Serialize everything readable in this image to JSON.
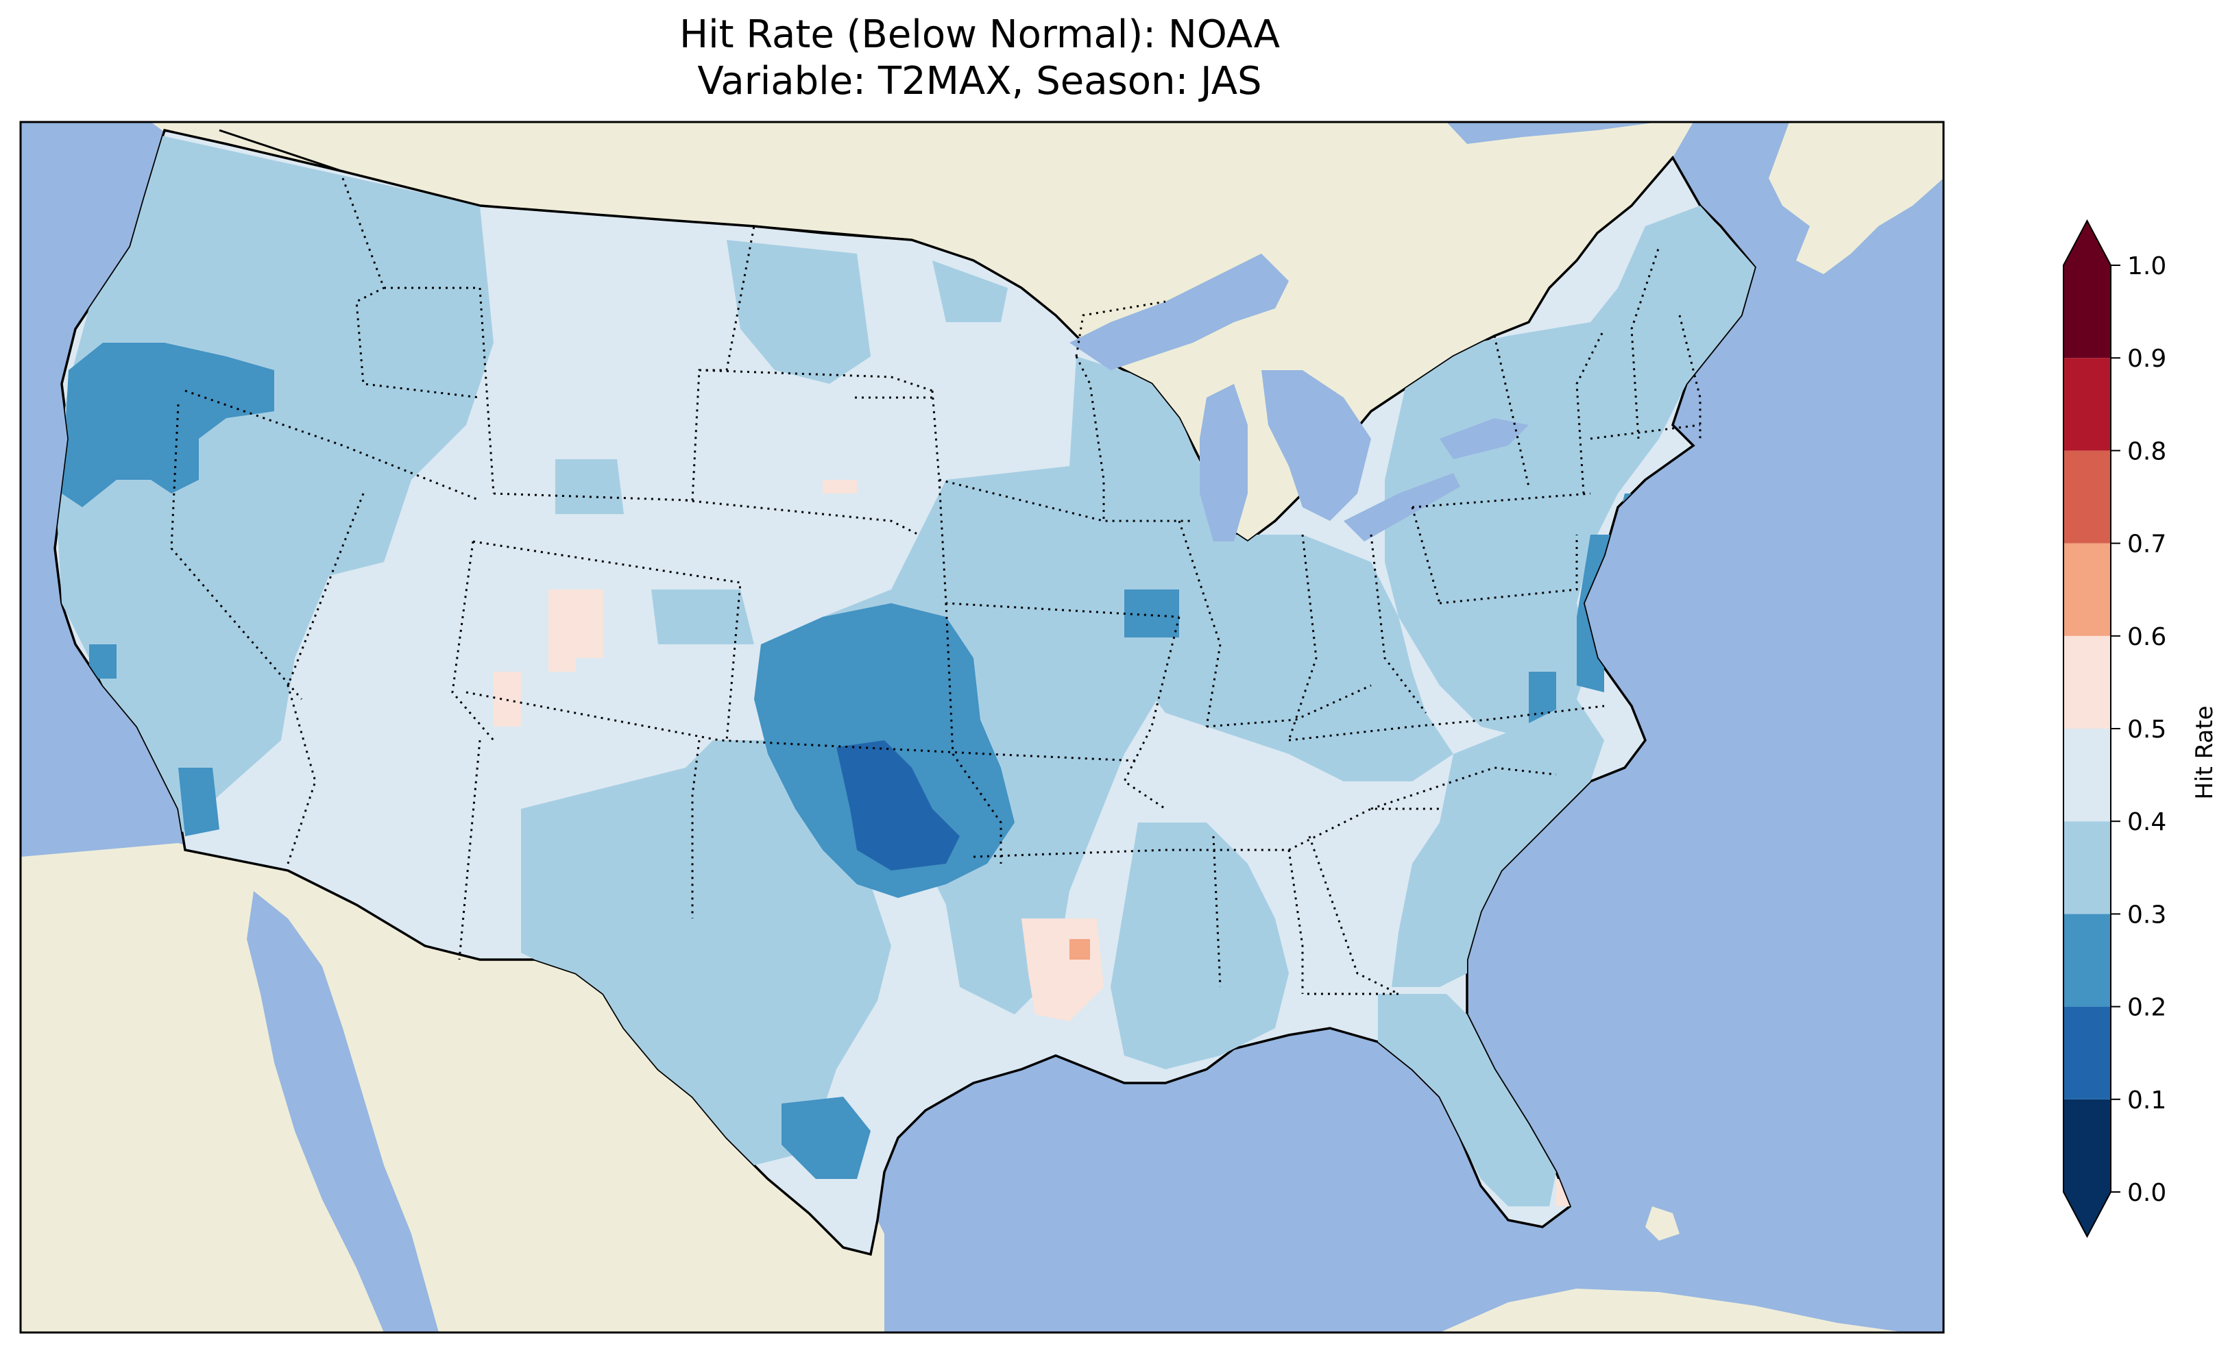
{
  "title_line_1": "Hit Rate (Below Normal): NOAA",
  "title_line_2": "Variable: T2MAX, Season: JAS",
  "colorbar": {
    "label": "Hit Rate",
    "ticks": [
      "0.0",
      "0.1",
      "0.2",
      "0.3",
      "0.4",
      "0.5",
      "0.6",
      "0.7",
      "0.8",
      "0.9",
      "1.0"
    ],
    "bins": [
      {
        "from": 0.0,
        "to": 0.1,
        "color": "#053061"
      },
      {
        "from": 0.1,
        "to": 0.2,
        "color": "#2166ac"
      },
      {
        "from": 0.2,
        "to": 0.3,
        "color": "#4393c3"
      },
      {
        "from": 0.3,
        "to": 0.4,
        "color": "#a6cee3"
      },
      {
        "from": 0.4,
        "to": 0.5,
        "color": "#dce9f2"
      },
      {
        "from": 0.5,
        "to": 0.6,
        "color": "#f9e3da"
      },
      {
        "from": 0.6,
        "to": 0.7,
        "color": "#f4a582"
      },
      {
        "from": 0.7,
        "to": 0.8,
        "color": "#d6604d"
      },
      {
        "from": 0.8,
        "to": 0.9,
        "color": "#b2182b"
      },
      {
        "from": 0.9,
        "to": 1.0,
        "color": "#67001f"
      }
    ],
    "extend": "both"
  },
  "colors": {
    "ocean": "#97b6e1",
    "land": "#efedd9",
    "frame": "#000000"
  }
}
